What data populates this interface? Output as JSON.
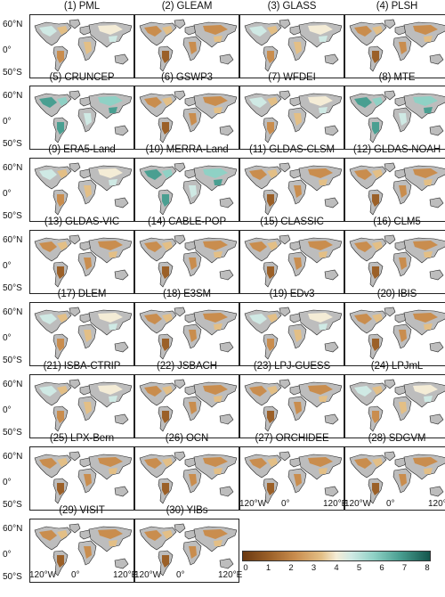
{
  "panels": [
    {
      "title": "(1) PML",
      "pal": "wet"
    },
    {
      "title": "(2) GLEAM",
      "pal": "dry"
    },
    {
      "title": "(3) GLASS",
      "pal": "wet"
    },
    {
      "title": "(4) PLSH",
      "pal": "dry"
    },
    {
      "title": "(5) CRUNCEP",
      "pal": "veryWet"
    },
    {
      "title": "(6) GSWP3",
      "pal": "dry"
    },
    {
      "title": "(7) WFDEI",
      "pal": "wet"
    },
    {
      "title": "(8) MTE",
      "pal": "veryWet"
    },
    {
      "title": "(9) ERA5-Land",
      "pal": "wet"
    },
    {
      "title": "(10) MERRA-Land",
      "pal": "veryWet"
    },
    {
      "title": "(11) GLDAS-CLSM",
      "pal": "dry"
    },
    {
      "title": "(12) GLDAS-NOAH",
      "pal": "dry"
    },
    {
      "title": "(13) GLDAS-VIC",
      "pal": "dry"
    },
    {
      "title": "(14) CABLE-POP",
      "pal": "dry"
    },
    {
      "title": "(15) CLASSIC",
      "pal": "dry"
    },
    {
      "title": "(16) CLM5",
      "pal": "dry"
    },
    {
      "title": "(17) DLEM",
      "pal": "wet"
    },
    {
      "title": "(18) E3SM",
      "pal": "dry"
    },
    {
      "title": "(19) EDv3",
      "pal": "wet"
    },
    {
      "title": "(20) IBIS",
      "pal": "dry"
    },
    {
      "title": "(21) ISBA-CTRIP",
      "pal": "wet"
    },
    {
      "title": "(22) JSBACH",
      "pal": "dry"
    },
    {
      "title": "(23) LPJ-GUESS",
      "pal": "dry"
    },
    {
      "title": "(24) LPJmL",
      "pal": "wet"
    },
    {
      "title": "(25) LPX-Bern",
      "pal": "dry"
    },
    {
      "title": "(26) OCN",
      "pal": "dry"
    },
    {
      "title": "(27) ORCHIDEE",
      "pal": "dry"
    },
    {
      "title": "(28) SDGVM",
      "pal": "dry"
    },
    {
      "title": "(29) VISIT",
      "pal": "dry"
    },
    {
      "title": "(30) YIBs",
      "pal": "dry"
    }
  ],
  "lat_labels": [
    "60°N",
    "0°",
    "50°S"
  ],
  "lon_labels": [
    "120°W",
    "0°",
    "120°E"
  ],
  "colorbar": {
    "ticks": [
      "0",
      "1",
      "2",
      "3",
      "4",
      "5",
      "6",
      "7",
      "8"
    ],
    "colors": [
      "#6b3a12",
      "#9b6028",
      "#c98d4e",
      "#e3bf86",
      "#f4ecd6",
      "#cfe9e4",
      "#8fd1c5",
      "#4a9f91",
      "#14564d"
    ]
  },
  "colors": {
    "land_no_data": "#bdbdbd",
    "coastline": "#222222"
  }
}
